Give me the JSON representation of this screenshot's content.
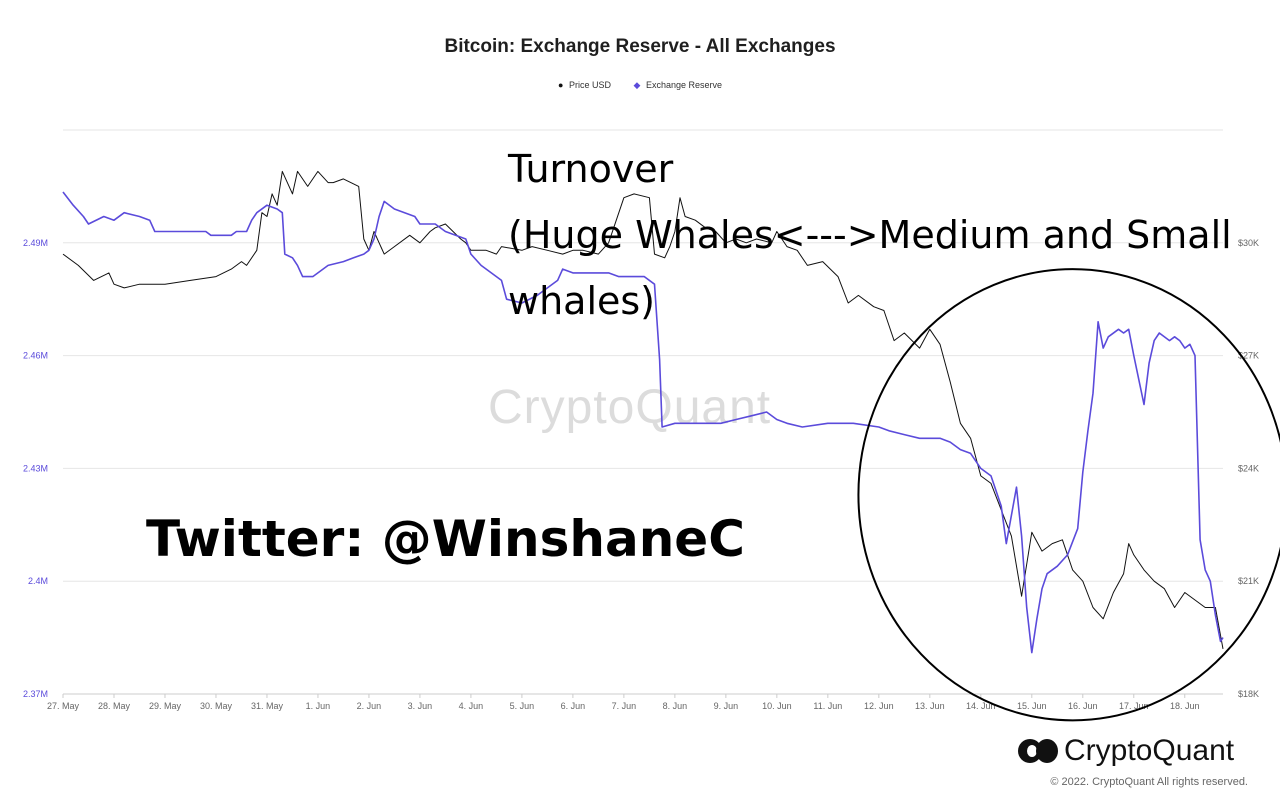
{
  "chart_data": {
    "type": "line",
    "title": "Bitcoin: Exchange Reserve - All Exchanges",
    "x_categories": [
      "27. May",
      "28. May",
      "29. May",
      "30. May",
      "31. May",
      "1. Jun",
      "2. Jun",
      "3. Jun",
      "4. Jun",
      "5. Jun",
      "6. Jun",
      "7. Jun",
      "8. Jun",
      "9. Jun",
      "10. Jun",
      "11. Jun",
      "12. Jun",
      "13. Jun",
      "14. Jun",
      "15. Jun",
      "16. Jun",
      "17. Jun",
      "18. Jun"
    ],
    "x_range": [
      0,
      22.75
    ],
    "left_axis": {
      "ticks": [
        "2.37M",
        "2.4M",
        "2.43M",
        "2.46M",
        "2.49M"
      ],
      "tick_values": [
        2.37,
        2.4,
        2.43,
        2.46,
        2.49
      ],
      "range_millions": [
        2.37,
        2.52
      ],
      "color": "#5b4bdb"
    },
    "right_axis": {
      "ticks": [
        "$18K",
        "$21K",
        "$24K",
        "$27K",
        "$30K"
      ],
      "tick_values": [
        18,
        21,
        24,
        27,
        30
      ],
      "range_thousands_usd": [
        18,
        33
      ]
    },
    "legend_position": "top-center",
    "grid": "horizontal",
    "series": [
      {
        "name": "Price USD",
        "axis": "right",
        "color": "#111111",
        "marker": "●",
        "points": [
          [
            0,
            29.7
          ],
          [
            0.3,
            29.4
          ],
          [
            0.6,
            29.0
          ],
          [
            0.9,
            29.2
          ],
          [
            1.0,
            28.9
          ],
          [
            1.2,
            28.8
          ],
          [
            1.5,
            28.9
          ],
          [
            1.8,
            28.9
          ],
          [
            2.0,
            28.9
          ],
          [
            2.5,
            29.0
          ],
          [
            3.0,
            29.1
          ],
          [
            3.3,
            29.3
          ],
          [
            3.5,
            29.5
          ],
          [
            3.6,
            29.4
          ],
          [
            3.8,
            29.8
          ],
          [
            3.9,
            30.8
          ],
          [
            4.0,
            30.7
          ],
          [
            4.1,
            31.3
          ],
          [
            4.2,
            31.0
          ],
          [
            4.3,
            31.9
          ],
          [
            4.5,
            31.3
          ],
          [
            4.6,
            31.9
          ],
          [
            4.8,
            31.5
          ],
          [
            5.0,
            31.9
          ],
          [
            5.2,
            31.6
          ],
          [
            5.3,
            31.6
          ],
          [
            5.5,
            31.7
          ],
          [
            5.8,
            31.5
          ],
          [
            5.9,
            30.1
          ],
          [
            6.0,
            29.8
          ],
          [
            6.1,
            30.3
          ],
          [
            6.2,
            30.0
          ],
          [
            6.3,
            29.7
          ],
          [
            6.5,
            29.9
          ],
          [
            6.8,
            30.2
          ],
          [
            7.0,
            30.0
          ],
          [
            7.2,
            30.3
          ],
          [
            7.3,
            30.4
          ],
          [
            7.5,
            30.5
          ],
          [
            7.8,
            30.1
          ],
          [
            7.9,
            30.0
          ],
          [
            8.0,
            29.8
          ],
          [
            8.3,
            29.8
          ],
          [
            8.5,
            29.7
          ],
          [
            8.6,
            29.9
          ],
          [
            9.0,
            29.8
          ],
          [
            9.2,
            29.9
          ],
          [
            9.5,
            29.8
          ],
          [
            9.8,
            29.7
          ],
          [
            10.0,
            29.8
          ],
          [
            10.2,
            29.8
          ],
          [
            10.5,
            29.7
          ],
          [
            10.7,
            30.0
          ],
          [
            10.8,
            30.4
          ],
          [
            11.0,
            31.2
          ],
          [
            11.2,
            31.3
          ],
          [
            11.5,
            31.2
          ],
          [
            11.6,
            29.7
          ],
          [
            11.8,
            29.6
          ],
          [
            11.9,
            29.9
          ],
          [
            12.0,
            30.3
          ],
          [
            12.1,
            31.2
          ],
          [
            12.2,
            30.7
          ],
          [
            12.4,
            30.6
          ],
          [
            12.6,
            30.4
          ],
          [
            12.8,
            30.3
          ],
          [
            13.0,
            30.0
          ],
          [
            13.2,
            30.1
          ],
          [
            13.4,
            30.0
          ],
          [
            13.6,
            30.1
          ],
          [
            13.9,
            30.0
          ],
          [
            14.0,
            30.3
          ],
          [
            14.2,
            29.9
          ],
          [
            14.4,
            29.8
          ],
          [
            14.6,
            29.4
          ],
          [
            14.9,
            29.5
          ],
          [
            15.2,
            29.1
          ],
          [
            15.4,
            28.4
          ],
          [
            15.6,
            28.6
          ],
          [
            15.9,
            28.3
          ],
          [
            16.1,
            28.2
          ],
          [
            16.3,
            27.4
          ],
          [
            16.5,
            27.6
          ],
          [
            16.8,
            27.2
          ],
          [
            17.0,
            27.7
          ],
          [
            17.2,
            27.3
          ],
          [
            17.4,
            26.3
          ],
          [
            17.6,
            25.2
          ],
          [
            17.8,
            24.8
          ],
          [
            18.0,
            23.8
          ],
          [
            18.2,
            23.6
          ],
          [
            18.4,
            22.9
          ],
          [
            18.6,
            22.2
          ],
          [
            18.8,
            20.6
          ],
          [
            19.0,
            22.3
          ],
          [
            19.2,
            21.8
          ],
          [
            19.4,
            22.0
          ],
          [
            19.6,
            22.1
          ],
          [
            19.8,
            21.3
          ],
          [
            20.0,
            21.0
          ],
          [
            20.2,
            20.3
          ],
          [
            20.4,
            20.0
          ],
          [
            20.6,
            20.7
          ],
          [
            20.8,
            21.2
          ],
          [
            20.9,
            22.0
          ],
          [
            21.0,
            21.7
          ],
          [
            21.2,
            21.3
          ],
          [
            21.4,
            21.0
          ],
          [
            21.6,
            20.8
          ],
          [
            21.8,
            20.3
          ],
          [
            22.0,
            20.7
          ],
          [
            22.2,
            20.5
          ],
          [
            22.4,
            20.3
          ],
          [
            22.6,
            20.3
          ],
          [
            22.75,
            19.2
          ]
        ]
      },
      {
        "name": "Exchange Reserve",
        "axis": "left",
        "color": "#5b4bdb",
        "marker": "◆",
        "points": [
          [
            0,
            2.5035
          ],
          [
            0.2,
            2.5
          ],
          [
            0.4,
            2.497
          ],
          [
            0.5,
            2.495
          ],
          [
            0.8,
            2.497
          ],
          [
            1.0,
            2.496
          ],
          [
            1.2,
            2.498
          ],
          [
            1.5,
            2.497
          ],
          [
            1.7,
            2.496
          ],
          [
            1.8,
            2.493
          ],
          [
            2.0,
            2.493
          ],
          [
            2.5,
            2.493
          ],
          [
            2.8,
            2.493
          ],
          [
            2.9,
            2.492
          ],
          [
            3.3,
            2.492
          ],
          [
            3.4,
            2.493
          ],
          [
            3.6,
            2.493
          ],
          [
            3.7,
            2.496
          ],
          [
            3.8,
            2.498
          ],
          [
            4.0,
            2.5
          ],
          [
            4.2,
            2.499
          ],
          [
            4.3,
            2.498
          ],
          [
            4.35,
            2.487
          ],
          [
            4.5,
            2.486
          ],
          [
            4.6,
            2.484
          ],
          [
            4.7,
            2.481
          ],
          [
            4.9,
            2.481
          ],
          [
            5.0,
            2.482
          ],
          [
            5.2,
            2.484
          ],
          [
            5.5,
            2.485
          ],
          [
            5.7,
            2.486
          ],
          [
            5.9,
            2.487
          ],
          [
            6.0,
            2.488
          ],
          [
            6.1,
            2.491
          ],
          [
            6.2,
            2.497
          ],
          [
            6.3,
            2.501
          ],
          [
            6.5,
            2.499
          ],
          [
            6.7,
            2.498
          ],
          [
            6.9,
            2.497
          ],
          [
            7.0,
            2.495
          ],
          [
            7.3,
            2.495
          ],
          [
            7.5,
            2.493
          ],
          [
            7.7,
            2.492
          ],
          [
            7.9,
            2.491
          ],
          [
            8.0,
            2.487
          ],
          [
            8.2,
            2.484
          ],
          [
            8.4,
            2.482
          ],
          [
            8.6,
            2.48
          ],
          [
            8.7,
            2.475
          ],
          [
            9.0,
            2.474
          ],
          [
            9.3,
            2.476
          ],
          [
            9.5,
            2.478
          ],
          [
            9.7,
            2.48
          ],
          [
            9.8,
            2.483
          ],
          [
            10.0,
            2.482
          ],
          [
            10.3,
            2.482
          ],
          [
            10.5,
            2.482
          ],
          [
            10.7,
            2.482
          ],
          [
            10.9,
            2.481
          ],
          [
            11.2,
            2.481
          ],
          [
            11.4,
            2.481
          ],
          [
            11.6,
            2.479
          ],
          [
            11.7,
            2.459
          ],
          [
            11.75,
            2.441
          ],
          [
            12.0,
            2.442
          ],
          [
            12.5,
            2.442
          ],
          [
            12.9,
            2.442
          ],
          [
            13.2,
            2.443
          ],
          [
            13.5,
            2.444
          ],
          [
            13.8,
            2.445
          ],
          [
            14.0,
            2.443
          ],
          [
            14.2,
            2.442
          ],
          [
            14.5,
            2.441
          ],
          [
            15.0,
            2.442
          ],
          [
            15.5,
            2.442
          ],
          [
            16.0,
            2.441
          ],
          [
            16.2,
            2.44
          ],
          [
            16.5,
            2.439
          ],
          [
            16.8,
            2.438
          ],
          [
            17.0,
            2.438
          ],
          [
            17.2,
            2.438
          ],
          [
            17.4,
            2.437
          ],
          [
            17.6,
            2.435
          ],
          [
            17.8,
            2.434
          ],
          [
            18.0,
            2.43
          ],
          [
            18.2,
            2.428
          ],
          [
            18.4,
            2.42
          ],
          [
            18.5,
            2.41
          ],
          [
            18.7,
            2.425
          ],
          [
            18.8,
            2.412
          ],
          [
            18.9,
            2.393
          ],
          [
            19.0,
            2.381
          ],
          [
            19.1,
            2.39
          ],
          [
            19.2,
            2.398
          ],
          [
            19.3,
            2.402
          ],
          [
            19.5,
            2.404
          ],
          [
            19.7,
            2.407
          ],
          [
            19.9,
            2.414
          ],
          [
            20.0,
            2.429
          ],
          [
            20.1,
            2.44
          ],
          [
            20.2,
            2.45
          ],
          [
            20.3,
            2.469
          ],
          [
            20.4,
            2.462
          ],
          [
            20.5,
            2.465
          ],
          [
            20.7,
            2.467
          ],
          [
            20.8,
            2.466
          ],
          [
            20.9,
            2.467
          ],
          [
            21.0,
            2.46
          ],
          [
            21.2,
            2.447
          ],
          [
            21.3,
            2.458
          ],
          [
            21.4,
            2.464
          ],
          [
            21.5,
            2.466
          ],
          [
            21.7,
            2.464
          ],
          [
            21.8,
            2.465
          ],
          [
            21.9,
            2.464
          ],
          [
            22.0,
            2.462
          ],
          [
            22.1,
            2.463
          ],
          [
            22.2,
            2.46
          ],
          [
            22.3,
            2.411
          ],
          [
            22.4,
            2.403
          ],
          [
            22.5,
            2.4
          ],
          [
            22.6,
            2.391
          ],
          [
            22.7,
            2.384
          ],
          [
            22.75,
            2.385
          ]
        ]
      }
    ],
    "annotations": [
      {
        "id": "turnover-text",
        "lines": [
          "Turnover",
          "(Huge Whales<--->Medium and Small",
          "whales)"
        ]
      },
      {
        "id": "twitter-text",
        "text": "Twitter: @WinshaneC"
      },
      {
        "id": "highlight-ellipse",
        "shape": "ellipse",
        "x_range": [
          15.6,
          24.0
        ],
        "y_range_thousands": [
          17.3,
          29.3
        ]
      }
    ]
  },
  "watermark": "CryptoQuant",
  "brand": {
    "logo_text": "CryptoQuant",
    "copyright": "© 2022. CryptoQuant All rights reserved."
  }
}
